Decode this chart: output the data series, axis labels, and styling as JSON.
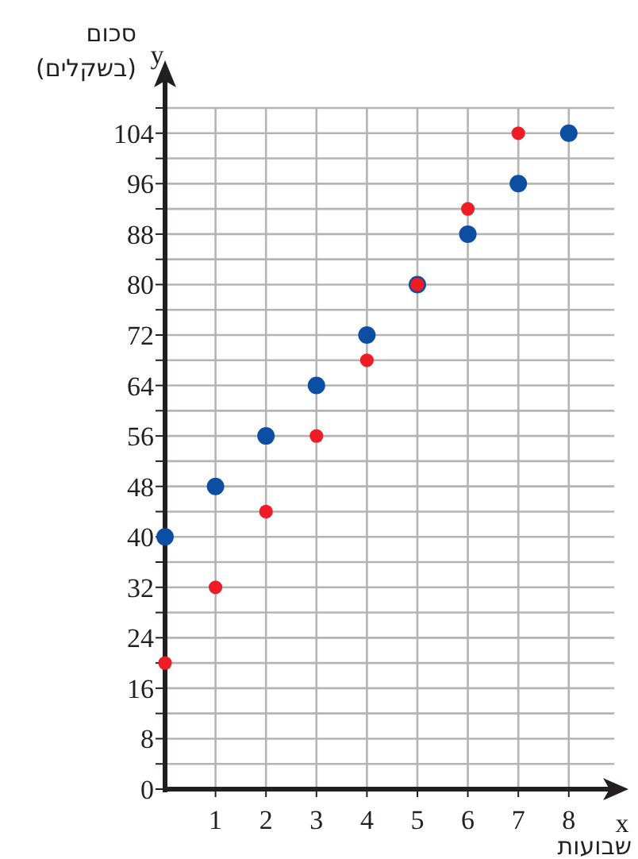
{
  "chart_data": {
    "type": "scatter",
    "xlabel": "שבועות",
    "ylabel": "סכום (בשקלים)",
    "annotations": [
      "x",
      "y"
    ],
    "xlim": [
      0,
      8.9
    ],
    "ylim": [
      0,
      108
    ],
    "xticks": [
      1,
      2,
      3,
      4,
      5,
      6,
      7,
      8
    ],
    "yticks": [
      0,
      {
        "value": 4,
        "label": null
      },
      8,
      {
        "value": 12,
        "label": null
      },
      16,
      {
        "value": 20,
        "label": null
      },
      24,
      {
        "value": 28,
        "label": null
      },
      32,
      {
        "value": 36,
        "label": null
      },
      40,
      {
        "value": 44,
        "label": null
      },
      48,
      {
        "value": 52,
        "label": null
      },
      56,
      {
        "value": 60,
        "label": null
      },
      64,
      {
        "value": 68,
        "label": null
      },
      72,
      {
        "value": 76,
        "label": null
      },
      80,
      {
        "value": 84,
        "label": null
      },
      88,
      {
        "value": 92,
        "label": null
      },
      96,
      {
        "value": 100,
        "label": null
      },
      104,
      {
        "value": 108,
        "label": null
      }
    ],
    "grid": true,
    "marker": "circle",
    "series": [
      {
        "color": "#0b4ea2",
        "x": [
          0,
          1,
          2,
          3,
          4,
          5,
          6,
          7,
          8
        ],
        "values": [
          40,
          48,
          56,
          64,
          72,
          80,
          88,
          96,
          104
        ]
      },
      {
        "color": "#ee1c25",
        "x": [
          0,
          1,
          2,
          3,
          4,
          5,
          6,
          7
        ],
        "values": [
          20,
          32,
          44,
          56,
          68,
          80,
          92,
          104
        ]
      }
    ]
  }
}
